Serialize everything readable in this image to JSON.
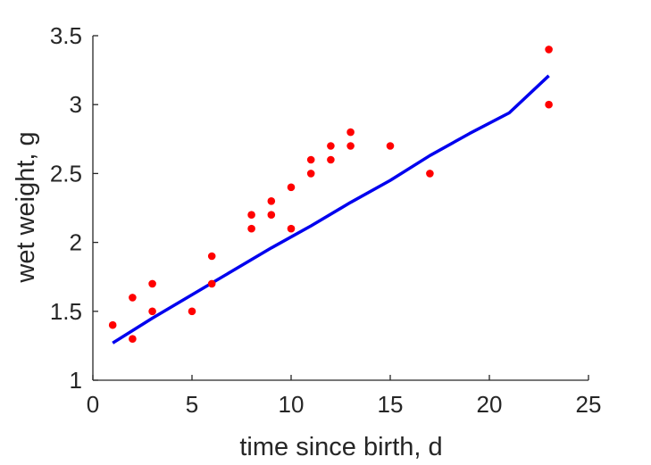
{
  "chart_data": {
    "type": "scatter",
    "xlabel": "time since birth, d",
    "ylabel": "wet weight, g",
    "xlim": [
      0,
      25
    ],
    "ylim": [
      1,
      3.5
    ],
    "xticks": [
      0,
      5,
      10,
      15,
      20,
      25
    ],
    "yticks": [
      1,
      1.5,
      2,
      2.5,
      3,
      3.5
    ],
    "xtick_labels": [
      "0",
      "5",
      "10",
      "15",
      "20",
      "25"
    ],
    "ytick_labels": [
      "1",
      "1.5",
      "2",
      "2.5",
      "3",
      "3.5"
    ],
    "grid": false,
    "series": [
      {
        "kind": "scatter",
        "color": "#ff0000",
        "points": [
          [
            1,
            1.4
          ],
          [
            2,
            1.6
          ],
          [
            2,
            1.3
          ],
          [
            3,
            1.7
          ],
          [
            3,
            1.5
          ],
          [
            5,
            1.5
          ],
          [
            6,
            1.9
          ],
          [
            6,
            1.7
          ],
          [
            8,
            2.2
          ],
          [
            8,
            2.1
          ],
          [
            9,
            2.3
          ],
          [
            9,
            2.2
          ],
          [
            10,
            2.4
          ],
          [
            10,
            2.1
          ],
          [
            11,
            2.6
          ],
          [
            11,
            2.5
          ],
          [
            12,
            2.7
          ],
          [
            12,
            2.6
          ],
          [
            13,
            2.8
          ],
          [
            13,
            2.7
          ],
          [
            15,
            2.7
          ],
          [
            17,
            2.5
          ],
          [
            23,
            3.4
          ],
          [
            23,
            3.0
          ]
        ]
      },
      {
        "kind": "line",
        "color": "#0000ee",
        "points": [
          [
            1,
            1.27
          ],
          [
            3,
            1.45
          ],
          [
            5,
            1.62
          ],
          [
            7,
            1.79
          ],
          [
            9,
            1.96
          ],
          [
            11,
            2.12
          ],
          [
            13,
            2.29
          ],
          [
            15,
            2.45
          ],
          [
            17,
            2.63
          ],
          [
            19,
            2.79
          ],
          [
            21,
            2.94
          ],
          [
            23,
            3.21
          ]
        ]
      }
    ]
  }
}
